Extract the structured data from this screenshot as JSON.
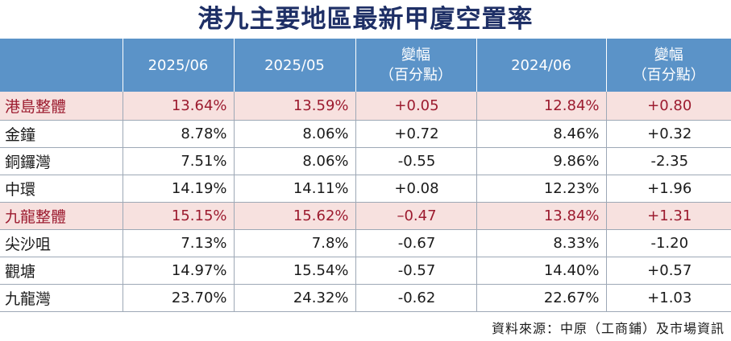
{
  "title": "港九主要地區最新甲廈空置率",
  "headers": [
    {
      "line1": "",
      "line2": ""
    },
    {
      "line1": "2025/06",
      "line2": ""
    },
    {
      "line1": "2025/05",
      "line2": ""
    },
    {
      "line1": "變幅",
      "line2": "（百分點）"
    },
    {
      "line1": "2024/06",
      "line2": ""
    },
    {
      "line1": "變幅",
      "line2": "（百分點）"
    }
  ],
  "rows": [
    {
      "name": "港島整體",
      "v202506": "13.64%",
      "v202505": "13.59%",
      "chg_mom": "+0.05",
      "v202406": "12.84%",
      "chg_yoy": "+0.80",
      "highlight": true
    },
    {
      "name": "金鐘",
      "v202506": "8.78%",
      "v202505": "8.06%",
      "chg_mom": "+0.72",
      "v202406": "8.46%",
      "chg_yoy": "+0.32",
      "highlight": false
    },
    {
      "name": "銅鑼灣",
      "v202506": "7.51%",
      "v202505": "8.06%",
      "chg_mom": "-0.55",
      "v202406": "9.86%",
      "chg_yoy": "-2.35",
      "highlight": false
    },
    {
      "name": "中環",
      "v202506": "14.19%",
      "v202505": "14.11%",
      "chg_mom": "+0.08",
      "v202406": "12.23%",
      "chg_yoy": "+1.96",
      "highlight": false
    },
    {
      "name": "九龍整體",
      "v202506": "15.15%",
      "v202505": "15.62%",
      "chg_mom": "–0.47",
      "v202406": "13.84%",
      "chg_yoy": "+1.31",
      "highlight": true
    },
    {
      "name": "尖沙咀",
      "v202506": "7.13%",
      "v202505": "7.8%",
      "chg_mom": "-0.67",
      "v202406": "8.33%",
      "chg_yoy": "-1.20",
      "highlight": false
    },
    {
      "name": "觀塘",
      "v202506": "14.97%",
      "v202505": "15.54%",
      "chg_mom": "-0.57",
      "v202406": "14.40%",
      "chg_yoy": "+0.57",
      "highlight": false
    },
    {
      "name": "九龍灣",
      "v202506": "23.70%",
      "v202505": "24.32%",
      "chg_mom": "-0.62",
      "v202406": "22.67%",
      "chg_yoy": "+1.03",
      "highlight": false
    }
  ],
  "source": "資料來源：中原（工商鋪）及市場資訊",
  "colors": {
    "header_bg": "#5b93c8",
    "title": "#1e2f66",
    "highlight_bg": "#f7e1df",
    "highlight_text": "#9c1b2f"
  }
}
